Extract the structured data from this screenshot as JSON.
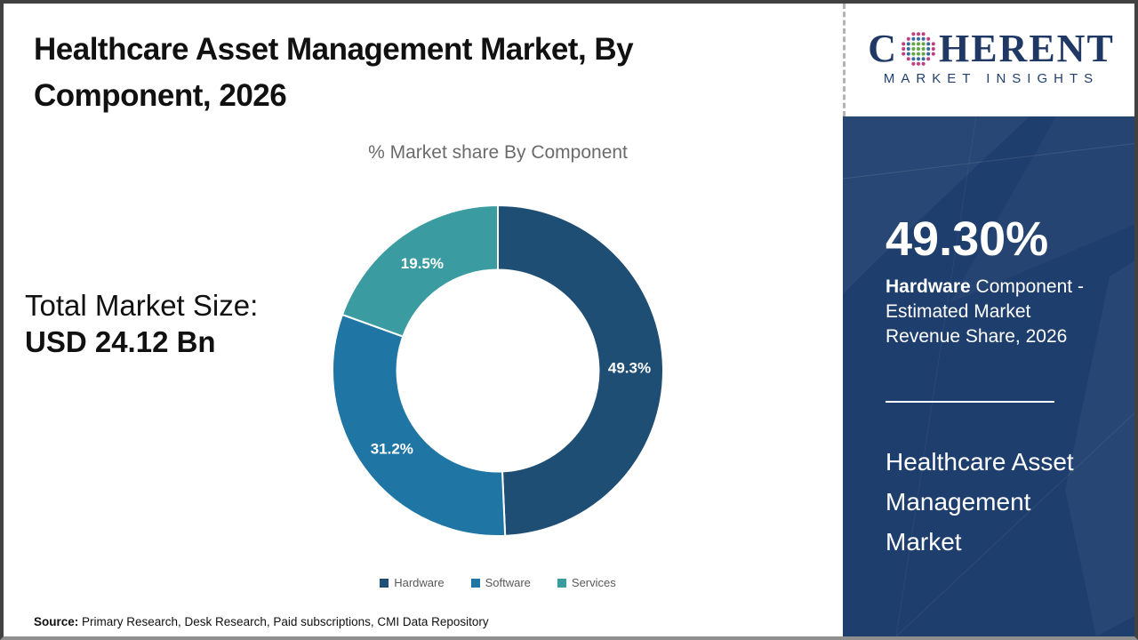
{
  "header": {
    "title": "Healthcare Asset Management Market, By Component, 2026"
  },
  "logo": {
    "word_prefix": "C",
    "word_suffix": "HERENT",
    "subtitle": "MARKET INSIGHTS",
    "brand_color": "#1f3864",
    "globe_dot_colors": {
      "inner": "#62a744",
      "middle": "#36699e",
      "outer": "#bf3f7f"
    }
  },
  "left_panel": {
    "total_label": "Total Market Size:",
    "total_value": "USD 24.12 Bn"
  },
  "chart_data": {
    "type": "pie",
    "subtype": "donut",
    "title": "% Market share By Component",
    "categories": [
      "Hardware",
      "Software",
      "Services"
    ],
    "values": [
      49.3,
      31.2,
      19.5
    ],
    "labels": [
      "49.3%",
      "31.2%",
      "19.5%"
    ],
    "colors": [
      "#1f4e74",
      "#1f76a4",
      "#3a9ba1"
    ],
    "start_angle_deg": 0,
    "direction": "clockwise",
    "donut_hole_ratio": 0.61,
    "legend_position": "bottom",
    "label_text_color": "#ffffff"
  },
  "sidebar": {
    "background_color": "#1e3e6d",
    "stat_value": "49.30%",
    "stat_bold": "Hardware",
    "stat_rest": " Component - Estimated Market Revenue Share, 2026",
    "market_name": "Healthcare Asset Management Market"
  },
  "footer": {
    "source_label": "Source:",
    "source_text": " Primary Research, Desk Research, Paid subscriptions, CMI Data Repository"
  }
}
